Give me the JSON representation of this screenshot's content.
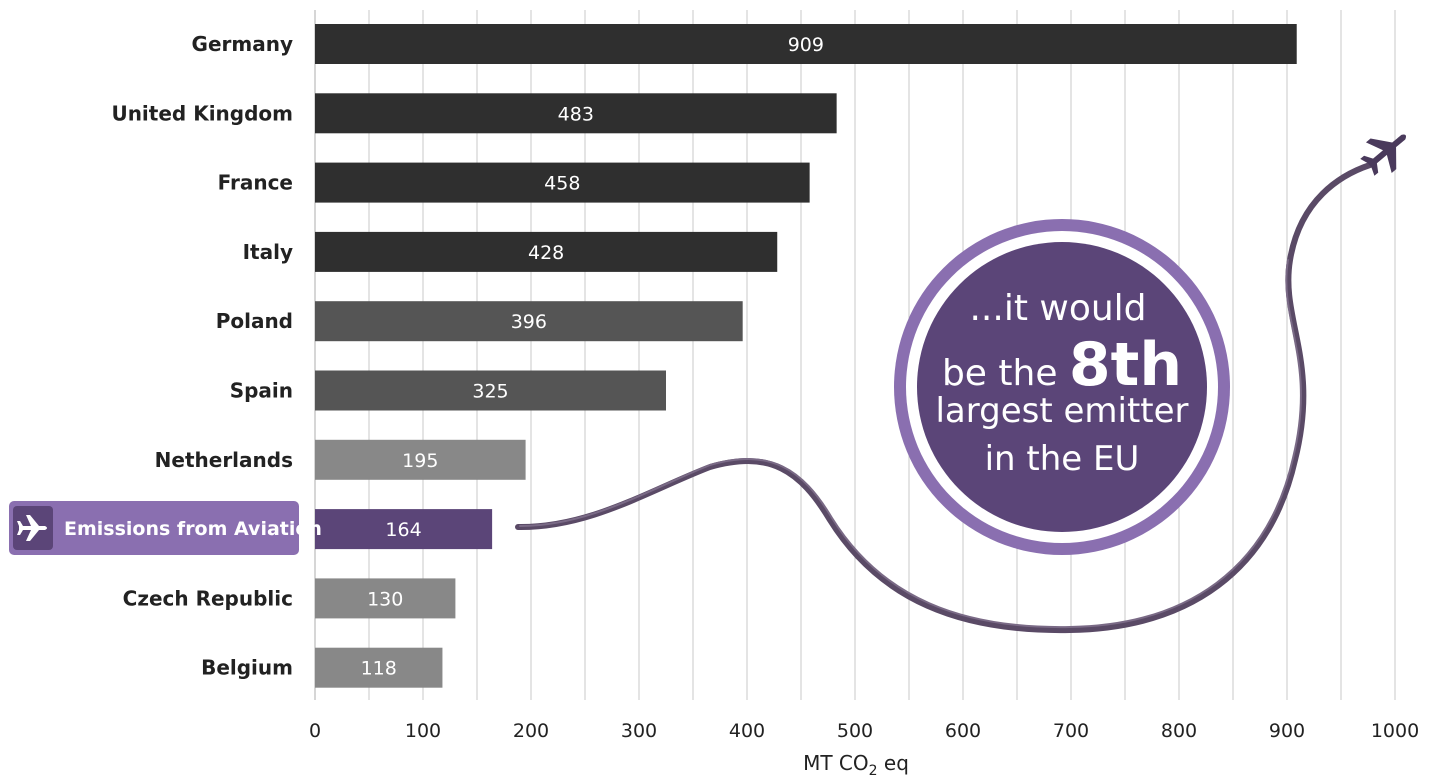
{
  "chart_data": {
    "type": "bar",
    "orientation": "horizontal",
    "categories": [
      "Germany",
      "United Kingdom",
      "France",
      "Italy",
      "Poland",
      "Spain",
      "Netherlands",
      "Emissions from Aviation",
      "Czech Republic",
      "Belgium"
    ],
    "values": [
      909,
      483,
      458,
      428,
      396,
      325,
      195,
      164,
      130,
      118
    ],
    "value_labels": [
      "909",
      "483",
      "458",
      "428",
      "396",
      "325",
      "195",
      "164",
      "130",
      "118"
    ],
    "highlight_category": "Emissions from Aviation",
    "x_ticks": [
      "0",
      "100",
      "200",
      "300",
      "400",
      "500",
      "600",
      "700",
      "800",
      "900",
      "1000"
    ],
    "xlim": [
      0,
      1000
    ],
    "xlabel_main": "MT CO",
    "xlabel_sub": "2",
    "xlabel_tail": " eq",
    "grid": true,
    "colors": {
      "dark": "#2f2f2f",
      "mid": "#555555",
      "light": "#888888",
      "highlight": "#5b4578",
      "highlight_badge": "#8a6fb0",
      "highlight_badge_dark": "#5b4578",
      "grid": "#c8c8c8"
    },
    "callout": {
      "line1": "...it would",
      "line2a": "be the ",
      "line2b": "8th",
      "line3": "largest emitter",
      "line4": "in the EU"
    }
  }
}
